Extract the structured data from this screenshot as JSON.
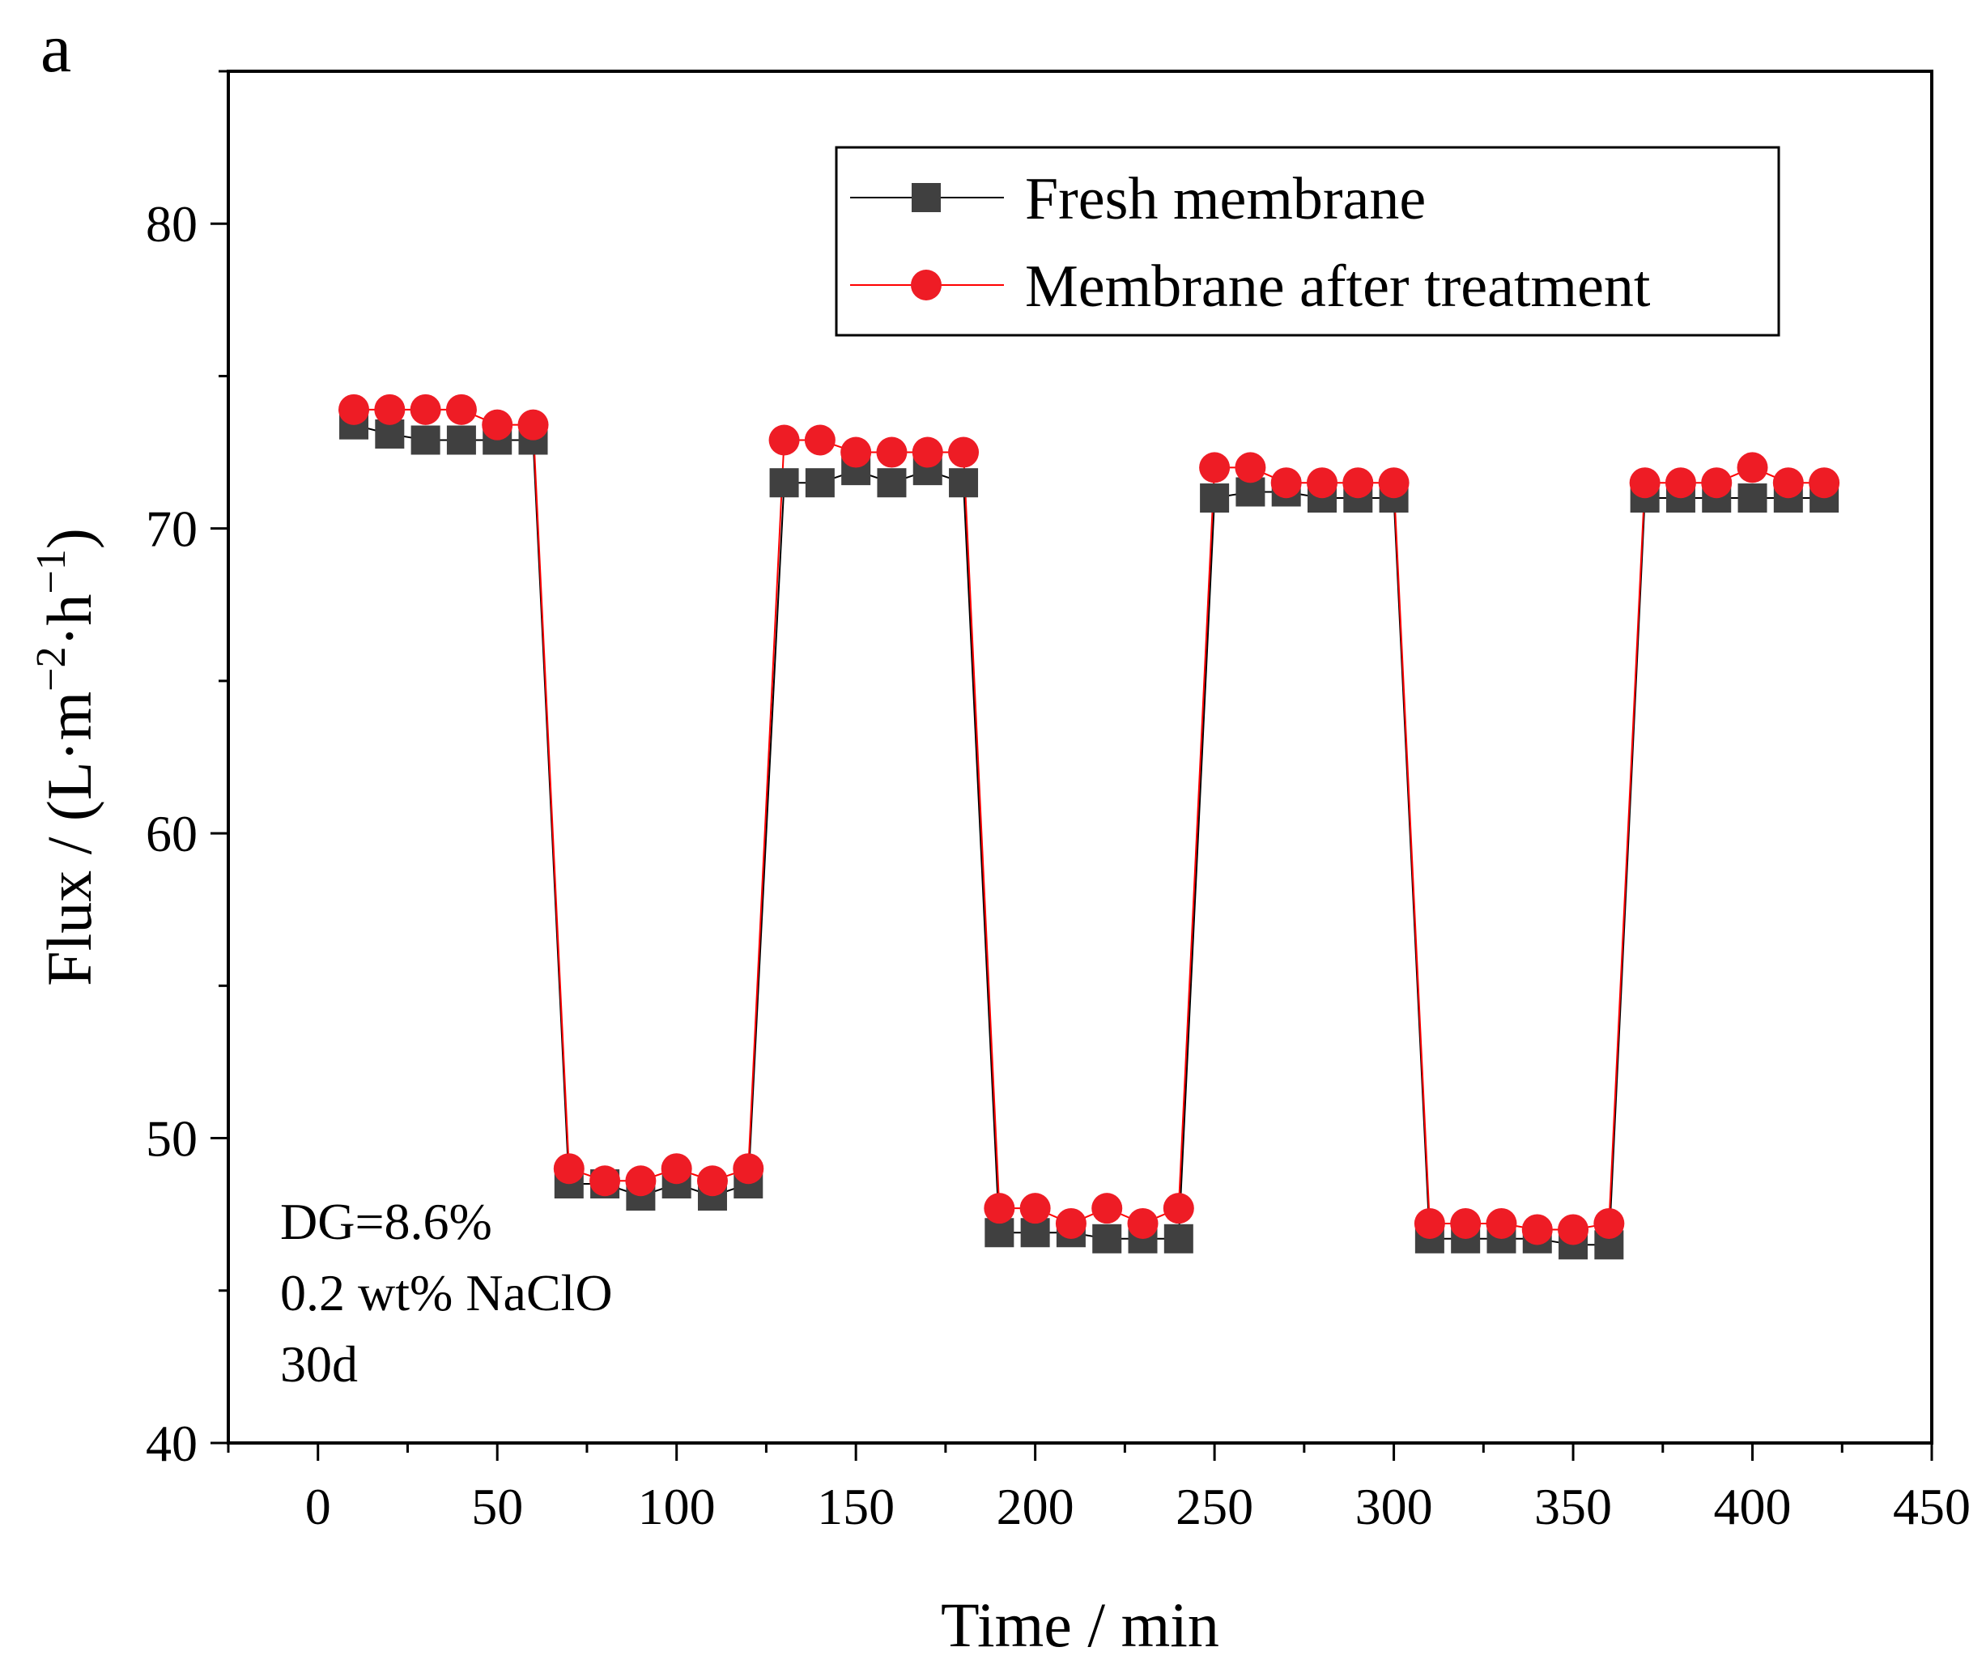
{
  "chart_data": {
    "type": "line",
    "panel_label": "a",
    "xlabel": "Time / min",
    "ylabel": {
      "text": "Flux / (L·m−2·h−1)",
      "base": "Flux / (L·m",
      "sup1": "−2",
      "mid": "·h",
      "sup2": "−1",
      "end": ")"
    },
    "xlim": [
      -25,
      450
    ],
    "ylim": [
      40,
      85
    ],
    "xticks": [
      0,
      50,
      100,
      150,
      200,
      250,
      300,
      350,
      400,
      450
    ],
    "yticks": [
      40,
      50,
      60,
      70,
      80
    ],
    "x": [
      10,
      20,
      30,
      40,
      50,
      60,
      70,
      80,
      90,
      100,
      110,
      120,
      130,
      140,
      150,
      160,
      170,
      180,
      190,
      200,
      210,
      220,
      230,
      240,
      250,
      260,
      270,
      280,
      290,
      300,
      310,
      320,
      330,
      340,
      350,
      360,
      370,
      380,
      390,
      400,
      410,
      420
    ],
    "series": [
      {
        "name": "Fresh membrane",
        "color": "#000000",
        "marker": "square",
        "marker_color": "#404040",
        "values": [
          73.4,
          73.1,
          72.9,
          72.9,
          72.9,
          72.9,
          48.5,
          48.5,
          48.1,
          48.5,
          48.1,
          48.5,
          71.5,
          71.5,
          71.9,
          71.5,
          71.9,
          71.5,
          46.9,
          46.9,
          46.9,
          46.7,
          46.7,
          46.7,
          71.0,
          71.2,
          71.2,
          71.0,
          71.0,
          71.0,
          46.7,
          46.7,
          46.7,
          46.7,
          46.5,
          46.5,
          71.0,
          71.0,
          71.0,
          71.0,
          71.0,
          71.0
        ]
      },
      {
        "name": "Membrane after treatment",
        "color": "#ff0000",
        "marker": "circle",
        "marker_color": "#ee1c25",
        "values": [
          73.9,
          73.9,
          73.9,
          73.9,
          73.4,
          73.4,
          49.0,
          48.6,
          48.6,
          49.0,
          48.6,
          49.0,
          72.9,
          72.9,
          72.5,
          72.5,
          72.5,
          72.5,
          47.7,
          47.7,
          47.2,
          47.7,
          47.2,
          47.7,
          72.0,
          72.0,
          71.5,
          71.5,
          71.5,
          71.5,
          47.2,
          47.2,
          47.2,
          47.0,
          47.0,
          47.2,
          71.5,
          71.5,
          71.5,
          72.0,
          71.5,
          71.5
        ]
      }
    ],
    "annotations": [
      "DG=8.6%",
      "0.2 wt% NaClO",
      "30d"
    ],
    "legend_position": "top-right",
    "grid": false
  }
}
